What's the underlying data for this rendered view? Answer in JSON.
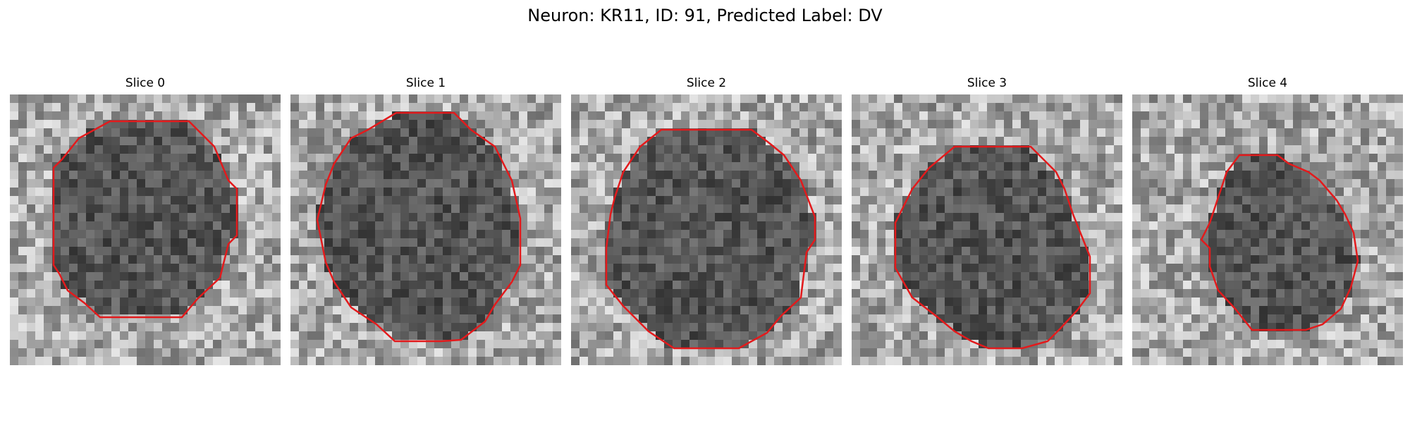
{
  "figure": {
    "title": "Neuron: KR11, ID: 91, Predicted Label: DV",
    "panels": [
      {
        "label": "Slice 0",
        "icon": "grayscale-microscopy-slice",
        "contour_color": "#e31a1c"
      },
      {
        "label": "Slice 1",
        "icon": "grayscale-microscopy-slice",
        "contour_color": "#e31a1c"
      },
      {
        "label": "Slice 2",
        "icon": "grayscale-microscopy-slice",
        "contour_color": "#e31a1c"
      },
      {
        "label": "Slice 3",
        "icon": "grayscale-microscopy-slice",
        "contour_color": "#e31a1c"
      },
      {
        "label": "Slice 4",
        "icon": "grayscale-microscopy-slice",
        "contour_color": "#e31a1c"
      }
    ]
  }
}
